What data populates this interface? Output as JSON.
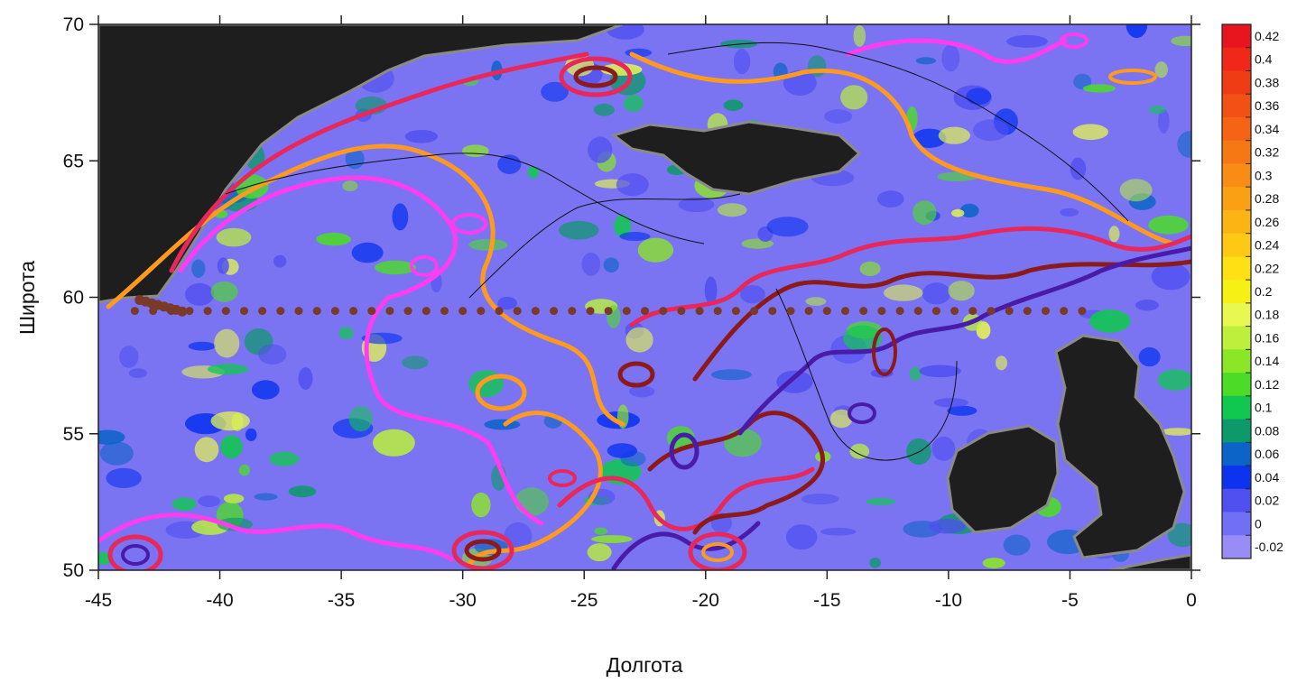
{
  "chart_data": {
    "type": "heatmap",
    "title": "",
    "xlabel": "Долгота",
    "ylabel": "Широта",
    "xlim": [
      -45,
      0
    ],
    "ylim": [
      50,
      70
    ],
    "x_ticks": [
      "-45",
      "-40",
      "-35",
      "-30",
      "-25",
      "-20",
      "-15",
      "-10",
      "-5",
      "0"
    ],
    "y_ticks": [
      "50",
      "55",
      "60",
      "65",
      "70"
    ],
    "colorbar": {
      "labels": [
        "0.42",
        "0.4",
        "0.38",
        "0.36",
        "0.34",
        "0.32",
        "0.3",
        "0.28",
        "0.26",
        "0.24",
        "0.22",
        "0.2",
        "0.18",
        "0.16",
        "0.14",
        "0.12",
        "0.1",
        "0.08",
        "0.06",
        "0.04",
        "0.02",
        "0",
        "-0.02"
      ],
      "colors": [
        "#e8141e",
        "#f0281a",
        "#f03c14",
        "#f25014",
        "#f46414",
        "#f67814",
        "#f88c14",
        "#faa014",
        "#fcb414",
        "#fec814",
        "#fee014",
        "#f6f014",
        "#e8f850",
        "#bcf03c",
        "#8ce628",
        "#4cdc28",
        "#10c850",
        "#0c9a6a",
        "#0c64c8",
        "#0c34f0",
        "#5050f0",
        "#7070f4",
        "#9a8cf6"
      ]
    },
    "transect": {
      "name": "station track",
      "color": "#7a3a2a",
      "lat": 59.5,
      "lon_start": -43.5,
      "lon_end": -4.5
    },
    "land_color": "#1e1e1e",
    "contour_colors": [
      "#ff3cf0",
      "#ff9a1e",
      "#e8285a",
      "#8c1a1a",
      "#4a1aa8"
    ]
  }
}
